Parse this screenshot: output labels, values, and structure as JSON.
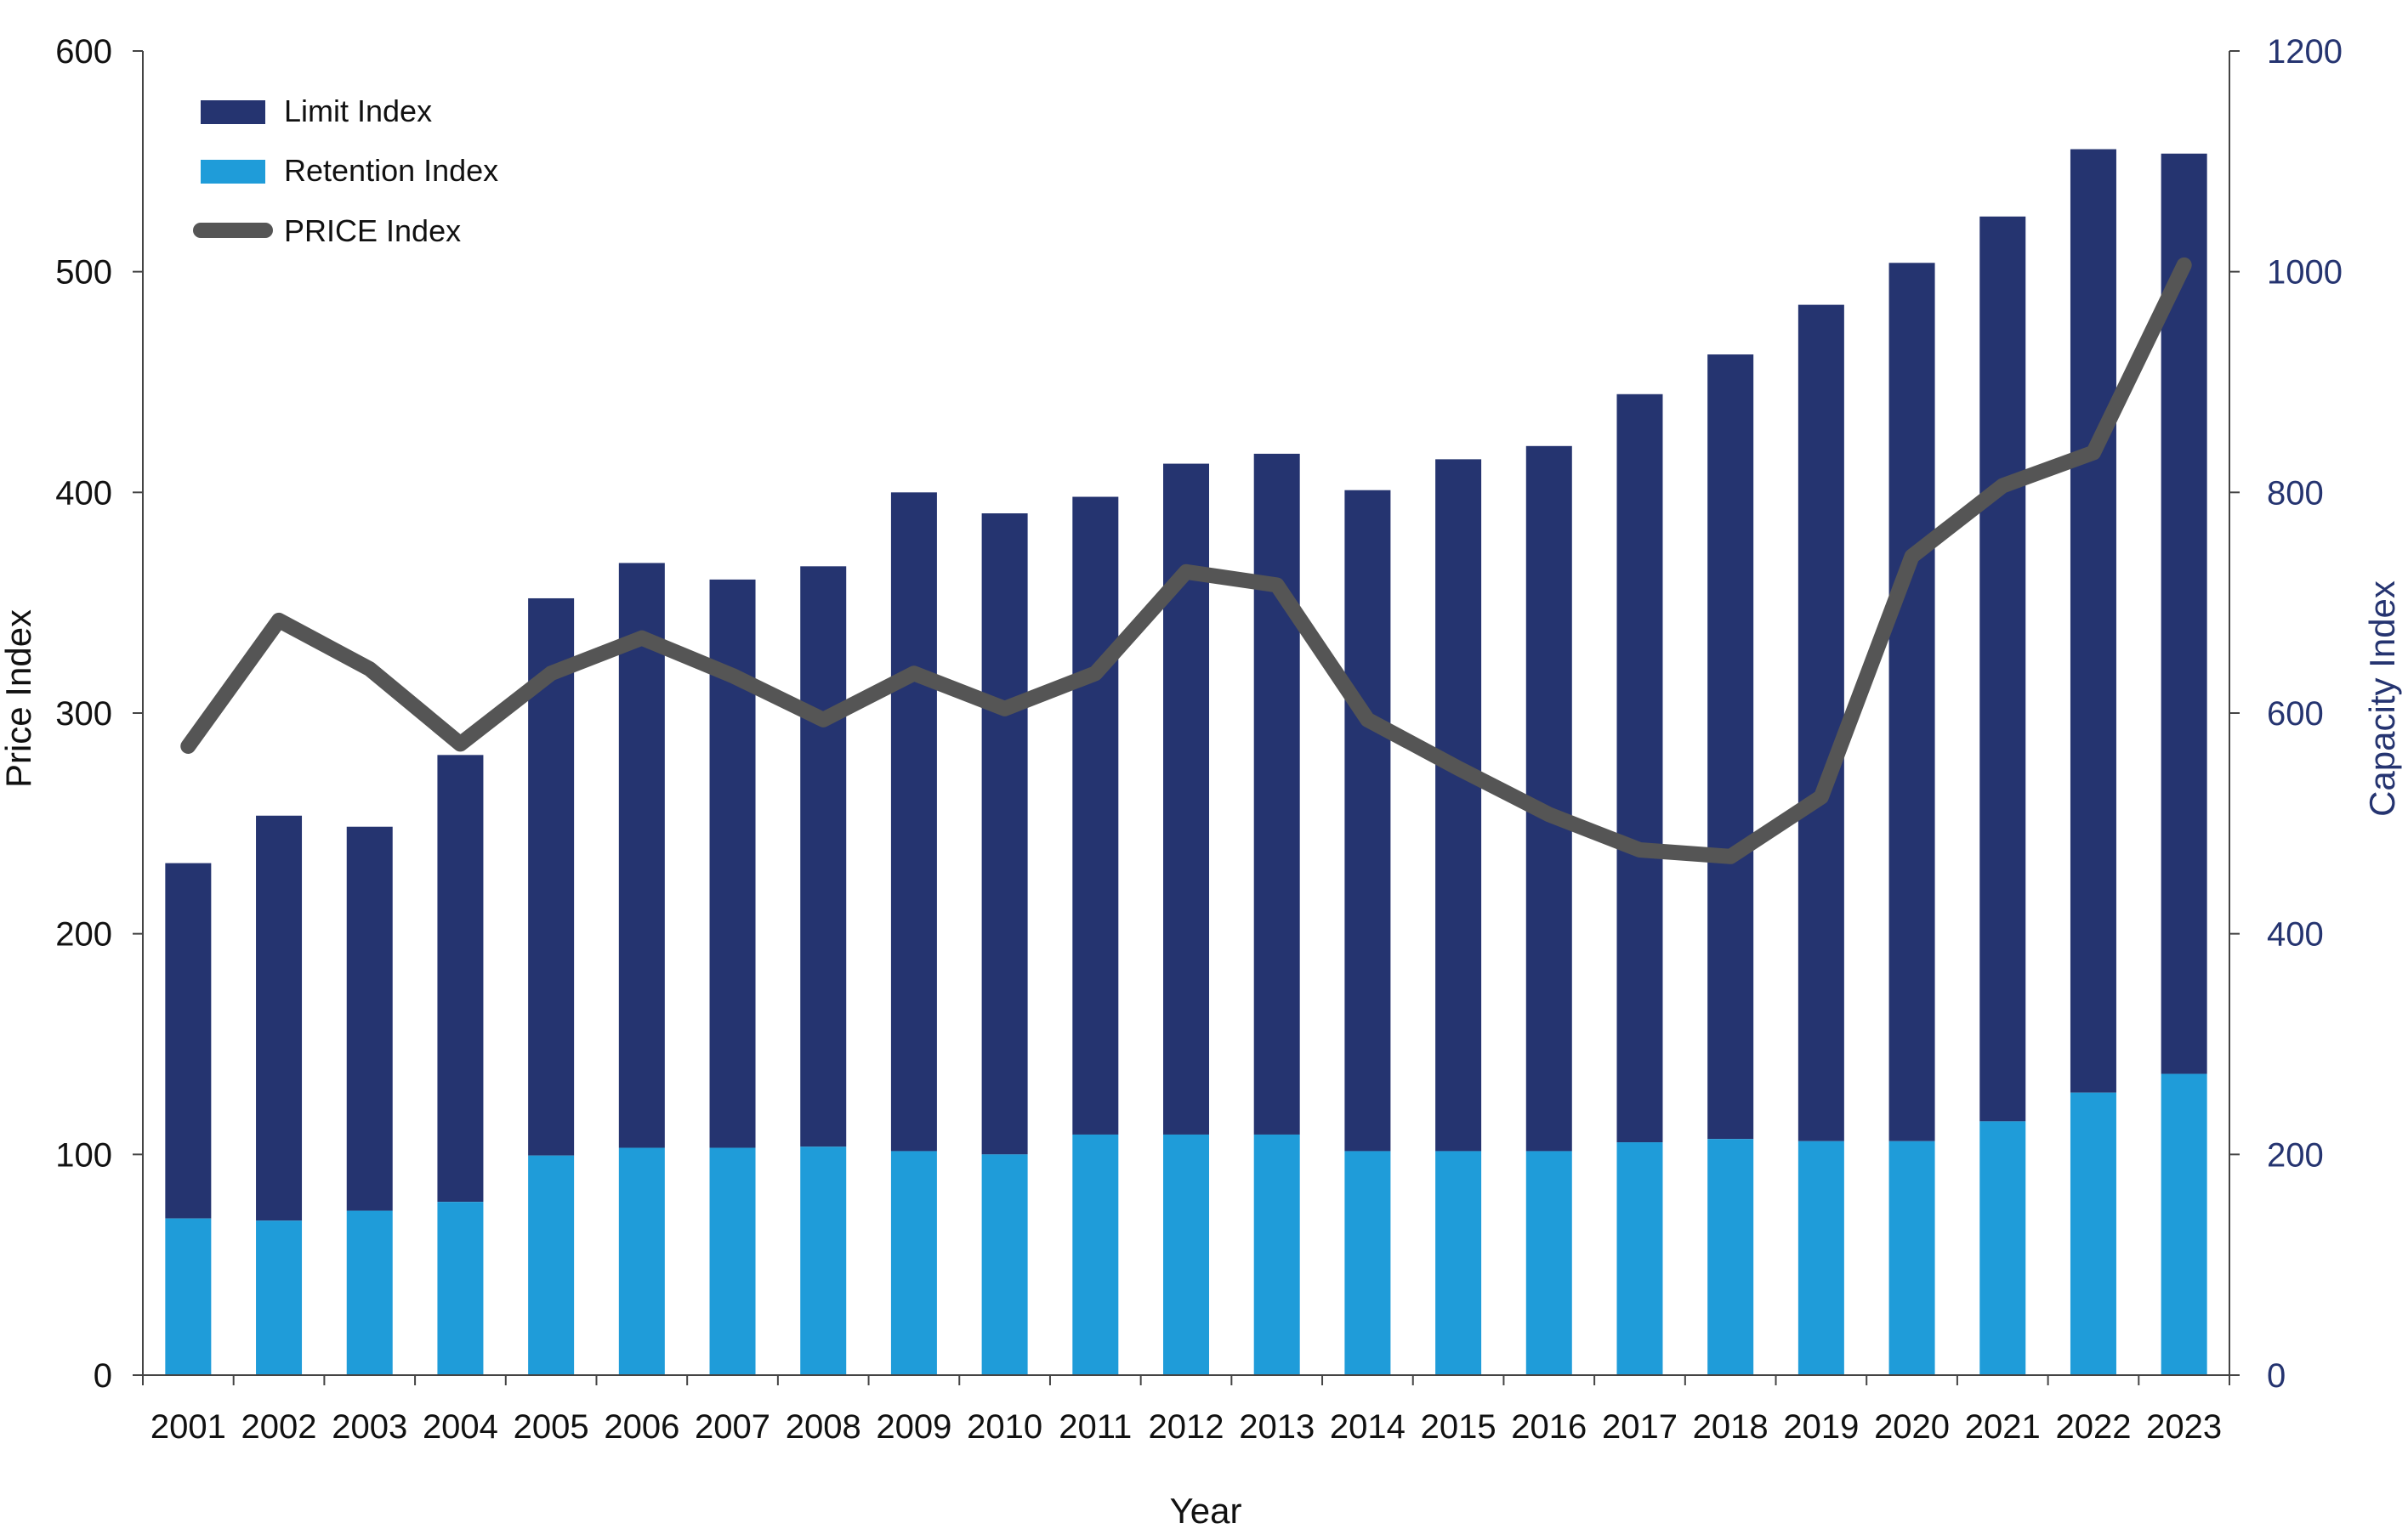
{
  "chart_data": {
    "type": "bar",
    "title": "",
    "xlabel": "Year",
    "ylabel_left": "Price Index",
    "ylabel_right": "Capacity Index",
    "categories": [
      "2001",
      "2002",
      "2003",
      "2004",
      "2005",
      "2006",
      "2007",
      "2008",
      "2009",
      "2010",
      "2011",
      "2012",
      "2013",
      "2014",
      "2015",
      "2016",
      "2017",
      "2018",
      "2019",
      "2020",
      "2021",
      "2022",
      "2023"
    ],
    "left_axis": {
      "range": [
        0,
        600
      ],
      "ticks": [
        "0",
        "100",
        "200",
        "300",
        "400",
        "500",
        "600"
      ]
    },
    "right_axis": {
      "range": [
        0,
        1200
      ],
      "ticks": [
        "0",
        "200",
        "400",
        "600",
        "800",
        "1000",
        "1200"
      ]
    },
    "legend_position": "top-left",
    "grid": false,
    "series": [
      {
        "name": "Limit Index",
        "kind": "stacked-bar",
        "axis": "right",
        "color": "#253470",
        "stack_totals": [
          464,
          507,
          497,
          562,
          704,
          736,
          721,
          733,
          800,
          781,
          796,
          826,
          835,
          802,
          830,
          842,
          889,
          925,
          970,
          1008,
          1050,
          1111,
          1107
        ]
      },
      {
        "name": "Retention Index",
        "kind": "stacked-bar-base",
        "axis": "right",
        "color": "#1f9cd9",
        "values": [
          142,
          140,
          149,
          157,
          199,
          206,
          206,
          207,
          203,
          200,
          218,
          218,
          218,
          203,
          203,
          203,
          211,
          214,
          212,
          212,
          230,
          256,
          273
        ]
      },
      {
        "name": "PRICE Index",
        "kind": "line",
        "axis": "left",
        "color": "#555555",
        "values": [
          285,
          342,
          320,
          286,
          318,
          334,
          317,
          297,
          318,
          302,
          318,
          364,
          358,
          297,
          275,
          254,
          238,
          235,
          262,
          371,
          403,
          418,
          503
        ]
      }
    ],
    "colors": {
      "axis_right": "#253470",
      "axis_left": "#111111"
    }
  }
}
